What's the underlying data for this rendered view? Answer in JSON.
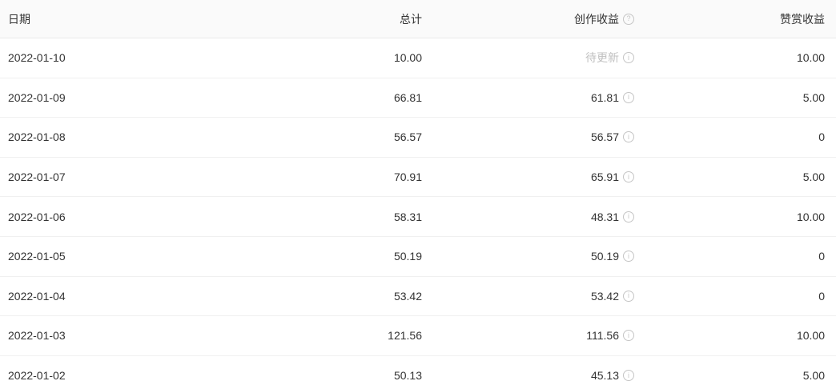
{
  "colors": {
    "header_bg": "#fafafa",
    "row_bg": "#ffffff",
    "border": "#f0f0f0",
    "header_border": "#e9e9e9",
    "text": "#333333",
    "muted": "#c0c0c0",
    "icon": "#c5c5c5"
  },
  "icons": {
    "header_help_glyph": "?",
    "cell_info_glyph": "i"
  },
  "table": {
    "columns": [
      {
        "key": "date",
        "label": "日期",
        "align": "left"
      },
      {
        "key": "total",
        "label": "总计",
        "align": "right"
      },
      {
        "key": "creation",
        "label": "创作收益",
        "align": "right",
        "has_help_icon": true
      },
      {
        "key": "appreciation",
        "label": "赞赏收益",
        "align": "right"
      }
    ],
    "rows": [
      {
        "date": "2022-01-10",
        "total": "10.00",
        "creation": "待更新",
        "creation_pending": true,
        "appreciation": "10.00"
      },
      {
        "date": "2022-01-09",
        "total": "66.81",
        "creation": "61.81",
        "creation_pending": false,
        "appreciation": "5.00"
      },
      {
        "date": "2022-01-08",
        "total": "56.57",
        "creation": "56.57",
        "creation_pending": false,
        "appreciation": "0"
      },
      {
        "date": "2022-01-07",
        "total": "70.91",
        "creation": "65.91",
        "creation_pending": false,
        "appreciation": "5.00"
      },
      {
        "date": "2022-01-06",
        "total": "58.31",
        "creation": "48.31",
        "creation_pending": false,
        "appreciation": "10.00"
      },
      {
        "date": "2022-01-05",
        "total": "50.19",
        "creation": "50.19",
        "creation_pending": false,
        "appreciation": "0"
      },
      {
        "date": "2022-01-04",
        "total": "53.42",
        "creation": "53.42",
        "creation_pending": false,
        "appreciation": "0"
      },
      {
        "date": "2022-01-03",
        "total": "121.56",
        "creation": "111.56",
        "creation_pending": false,
        "appreciation": "10.00"
      },
      {
        "date": "2022-01-02",
        "total": "50.13",
        "creation": "45.13",
        "creation_pending": false,
        "appreciation": "5.00"
      }
    ]
  }
}
